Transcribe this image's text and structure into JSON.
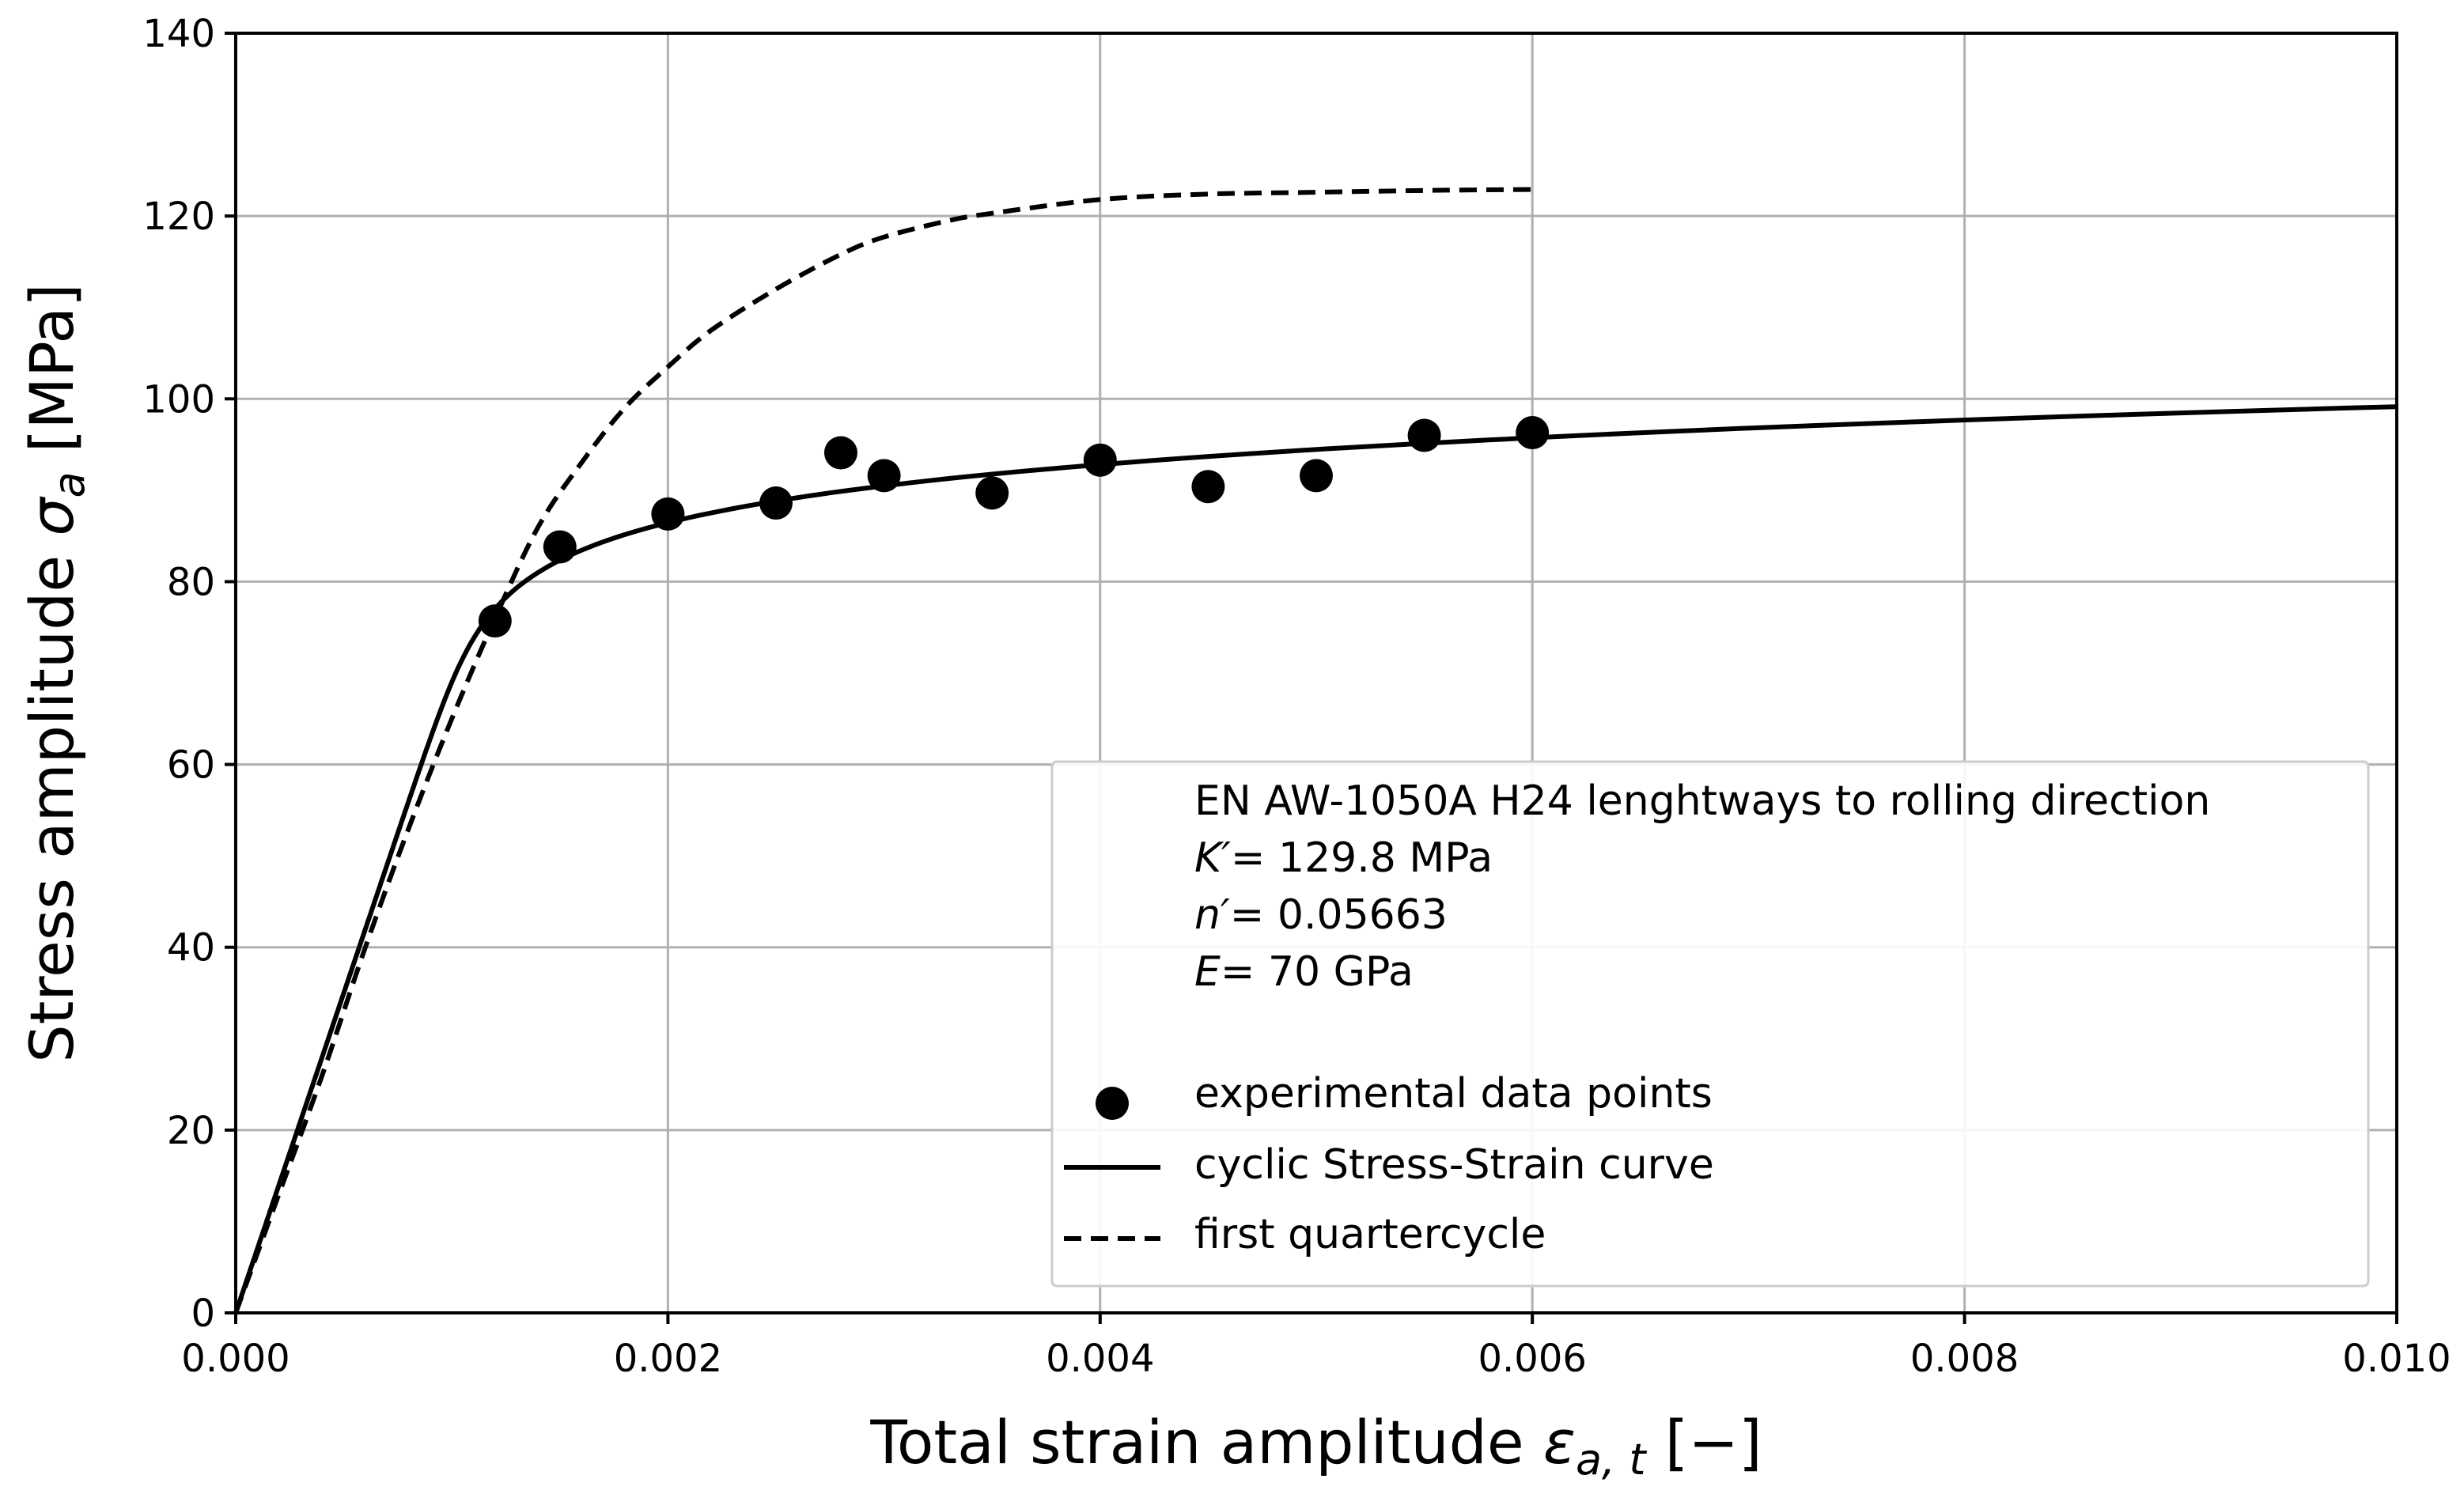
{
  "chart_data": {
    "type": "line",
    "title": "",
    "xlabel": "Total strain amplitude",
    "xlabel_symbol": "ε",
    "xlabel_sub": "a, t",
    "xlabel_unit": " [−]",
    "ylabel": "Stress amplitude",
    "ylabel_symbol": "σ",
    "ylabel_sub": "a",
    "ylabel_unit": " [MPa]",
    "xlim": [
      0,
      0.01
    ],
    "ylim": [
      0,
      140
    ],
    "grid": true,
    "x_ticks": [
      0,
      0.002,
      0.004,
      0.006,
      0.008,
      0.01
    ],
    "x_tick_labels": [
      "0.000",
      "0.002",
      "0.004",
      "0.006",
      "0.008",
      "0.010"
    ],
    "y_ticks": [
      0,
      20,
      40,
      60,
      80,
      100,
      120,
      140
    ],
    "y_tick_labels": [
      "0",
      "20",
      "40",
      "60",
      "80",
      "100",
      "120",
      "140"
    ],
    "material": {
      "name": "EN AW-1050A H24 lenghtways to rolling direction",
      "K_label": "K′",
      "K_value": "= 129.8 MPa",
      "n_label": "n′",
      "n_value": "=  0.05663",
      "E_label": "E",
      "E_value": "=  70 GPa",
      "K_MPa": 129.8,
      "n": 0.05663,
      "E_MPa": 70000
    },
    "legend_placement": "lower-right",
    "series": [
      {
        "name": "experimental data points",
        "kind": "scatter",
        "color": "#000000",
        "points": [
          [
            0.0012,
            75.7
          ],
          [
            0.0015,
            83.8
          ],
          [
            0.002,
            87.4
          ],
          [
            0.0025,
            88.6
          ],
          [
            0.0028,
            94.1
          ],
          [
            0.003,
            91.6
          ],
          [
            0.0035,
            89.7
          ],
          [
            0.004,
            93.3
          ],
          [
            0.0045,
            90.4
          ],
          [
            0.005,
            91.6
          ],
          [
            0.0055,
            96.0
          ],
          [
            0.006,
            96.3
          ]
        ]
      },
      {
        "name": "cyclic Stress-Strain curve",
        "kind": "line",
        "style": "solid",
        "color": "#000000",
        "x_range": [
          0,
          0.01
        ]
      },
      {
        "name": "first quartercycle",
        "kind": "line",
        "style": "dashed",
        "color": "#000000",
        "points": [
          [
            0,
            0
          ],
          [
            0.0002,
            13
          ],
          [
            0.0004,
            26
          ],
          [
            0.0006,
            40
          ],
          [
            0.0008,
            53
          ],
          [
            0.001,
            65
          ],
          [
            0.0012,
            76
          ],
          [
            0.0014,
            86
          ],
          [
            0.0016,
            93
          ],
          [
            0.0018,
            99
          ],
          [
            0.002,
            103.5
          ],
          [
            0.0022,
            107.5
          ],
          [
            0.0025,
            112
          ],
          [
            0.0028,
            115.8
          ],
          [
            0.003,
            117.7
          ],
          [
            0.0033,
            119.5
          ],
          [
            0.0035,
            120.3
          ],
          [
            0.004,
            121.8
          ],
          [
            0.0045,
            122.4
          ],
          [
            0.005,
            122.6
          ],
          [
            0.0055,
            122.8
          ],
          [
            0.006,
            122.9
          ]
        ]
      }
    ]
  }
}
